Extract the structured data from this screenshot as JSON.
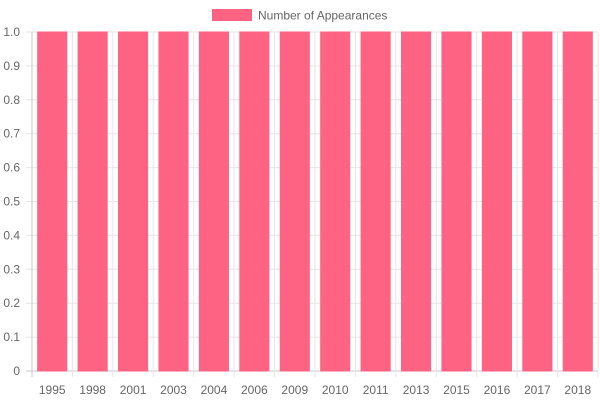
{
  "chart_data": {
    "type": "bar",
    "title": "",
    "xlabel": "",
    "ylabel": "",
    "categories": [
      "1995",
      "1998",
      "2001",
      "2003",
      "2004",
      "2006",
      "2009",
      "2010",
      "2011",
      "2013",
      "2015",
      "2016",
      "2017",
      "2018"
    ],
    "series": [
      {
        "name": "Number of Appearances",
        "values": [
          1,
          1,
          1,
          1,
          1,
          1,
          1,
          1,
          1,
          1,
          1,
          1,
          1,
          1
        ]
      }
    ],
    "ylim": [
      0,
      1
    ],
    "y_ticks": [
      "0",
      "0.1",
      "0.2",
      "0.3",
      "0.4",
      "0.5",
      "0.6",
      "0.7",
      "0.8",
      "0.9",
      "1.0"
    ],
    "grid": true,
    "legend_position": "top-center",
    "colors": {
      "bar_fill": "#ff6384",
      "bar_border": "#ff6384",
      "grid": "#e6e6e6",
      "axis": "#c8c8c8",
      "text": "#666666"
    }
  }
}
